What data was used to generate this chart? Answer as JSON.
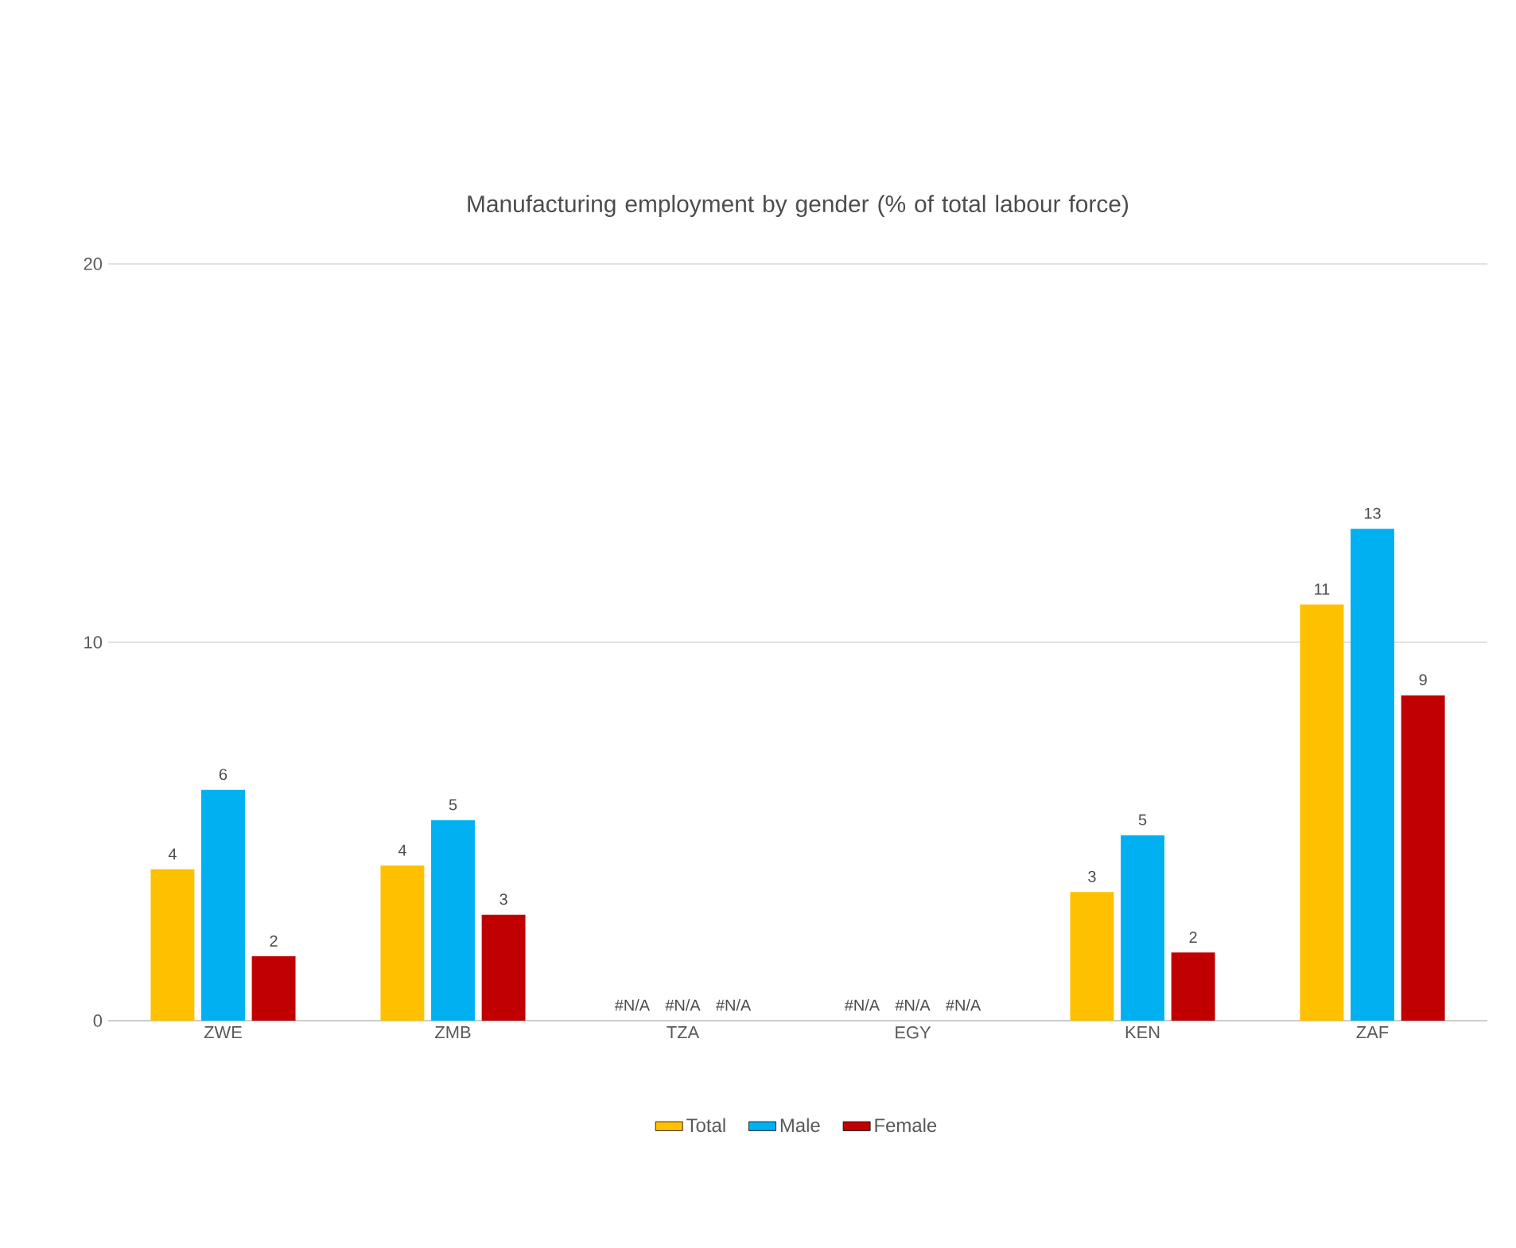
{
  "chart_data": {
    "type": "bar",
    "title": "Manufacturing employment by gender (% of total labour force)",
    "categories": [
      "ZWE",
      "ZMB",
      "TZA",
      "EGY",
      "KEN",
      "ZAF"
    ],
    "series": [
      {
        "name": "Total",
        "color": "#ffc000",
        "values": [
          4.0,
          4.1,
          null,
          null,
          3.4,
          11.0
        ],
        "value_labels": [
          "4",
          "4",
          "#N/A",
          "#N/A",
          "3",
          "11"
        ]
      },
      {
        "name": "Male",
        "color": "#00b0f0",
        "values": [
          6.1,
          5.3,
          null,
          null,
          4.9,
          13.0
        ],
        "value_labels": [
          "6",
          "5",
          "#N/A",
          "#N/A",
          "5",
          "13"
        ]
      },
      {
        "name": "Female",
        "color": "#c00000",
        "values": [
          1.7,
          2.8,
          null,
          null,
          1.8,
          8.6
        ],
        "value_labels": [
          "2",
          "3",
          "#N/A",
          "#N/A",
          "2",
          "9"
        ]
      }
    ],
    "ylim": [
      0,
      20
    ],
    "yticks": [
      0,
      10,
      20
    ],
    "grid": "y",
    "legend": "bottom"
  }
}
